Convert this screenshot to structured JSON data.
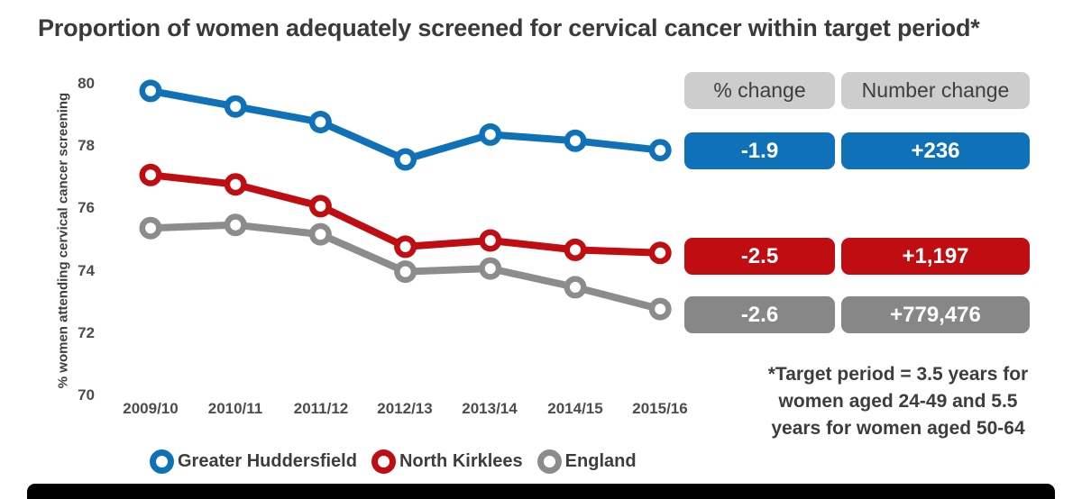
{
  "title": "Proportion of women adequately screened for cervical cancer within target period*",
  "chart_data": {
    "type": "line",
    "categories": [
      "2009/10",
      "2010/11",
      "2011/12",
      "2012/13",
      "2013/14",
      "2014/15",
      "2015/16"
    ],
    "series": [
      {
        "name": "Greater Huddersfield",
        "color": "#0f72b9",
        "values": [
          79.8,
          79.3,
          78.8,
          77.6,
          78.4,
          78.2,
          77.9
        ]
      },
      {
        "name": "North Kirklees",
        "color": "#c00d12",
        "values": [
          77.1,
          76.8,
          76.1,
          74.8,
          75.0,
          74.7,
          74.6
        ]
      },
      {
        "name": "England",
        "color": "#8c8c8c",
        "values": [
          75.4,
          75.5,
          75.2,
          74.0,
          74.1,
          73.5,
          72.8
        ]
      }
    ],
    "title": "Proportion of women adequately screened for cervical cancer within target period*",
    "xlabel": "",
    "ylabel": "% women attending cervical cancer screening",
    "ylim": [
      70,
      80
    ],
    "yticks": [
      80,
      78,
      76,
      74,
      72,
      70
    ],
    "grid": "off",
    "legend_position": "bottom",
    "marker_style": "ring"
  },
  "summary_panel": {
    "header_bg": "#cdcdcd",
    "columns": [
      {
        "label": "% change"
      },
      {
        "label": "Number change"
      }
    ],
    "rows": [
      {
        "series": "Greater Huddersfield",
        "color": "#0f72b9",
        "pct_change": "-1.9",
        "number_change": "+236"
      },
      {
        "series": "North Kirklees",
        "color": "#c00d12",
        "pct_change": "-2.5",
        "number_change": "+1,197"
      },
      {
        "series": "England",
        "color": "#878787",
        "pct_change": "-2.6",
        "number_change": "+779,476"
      }
    ]
  },
  "footnote": {
    "lines": [
      "*Target period = 3.5 years for",
      "women aged 24-49 and 5.5",
      "years for women aged 50-64"
    ]
  }
}
